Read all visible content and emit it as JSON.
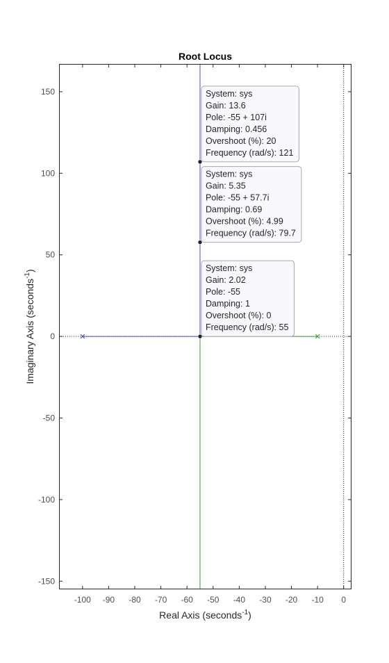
{
  "chart_data": {
    "type": "line",
    "title": "Root Locus",
    "xlabel": {
      "main": "Real Axis (seconds",
      "sup": "-1",
      "tail": ")"
    },
    "ylabel": {
      "main": "Imaginary Axis (seconds",
      "sup": "-1",
      "tail": ")"
    },
    "xlim": [
      -109,
      3
    ],
    "ylim": [
      -155,
      167
    ],
    "xticks": [
      -100,
      -90,
      -80,
      -70,
      -60,
      -50,
      -40,
      -30,
      -20,
      -10,
      0
    ],
    "yticks": [
      -150,
      -100,
      -50,
      0,
      50,
      100,
      150
    ],
    "grid": false,
    "colors": {
      "branch1": "#4a4ac8",
      "branch2": "#3a9a3a",
      "axis": "#262626",
      "tick_text": "#4d4d4d"
    },
    "poles": [
      {
        "x": -100,
        "y": 0,
        "color": "#4a4ac8"
      },
      {
        "x": -10,
        "y": 0,
        "color": "#3a9a3a"
      }
    ],
    "series": [
      {
        "color": "#4a4ac8",
        "x": [
          -100,
          -55,
          -55
        ],
        "y": [
          0,
          0,
          167
        ]
      },
      {
        "color": "#3a9a3a",
        "x": [
          -10,
          -55,
          -55
        ],
        "y": [
          0,
          0,
          -155
        ]
      }
    ],
    "datatips": [
      {
        "point": [
          -55,
          107
        ],
        "lines": [
          "System: sys",
          "Gain: 13.6",
          "Pole: -55 + 107i",
          "Damping: 0.456",
          "Overshoot (%): 20",
          "Frequency (rad/s): 121"
        ]
      },
      {
        "point": [
          -55,
          57.7
        ],
        "lines": [
          "System: sys",
          "Gain: 5.35",
          "Pole: -55 + 57.7i",
          "Damping: 0.69",
          "Overshoot (%): 4.99",
          "Frequency (rad/s): 79.7"
        ]
      },
      {
        "point": [
          -55,
          0
        ],
        "lines": [
          "System: sys",
          "Gain: 2.02",
          "Pole: -55",
          "Damping: 1",
          "Overshoot (%): 0",
          "Frequency (rad/s): 55"
        ]
      }
    ]
  }
}
